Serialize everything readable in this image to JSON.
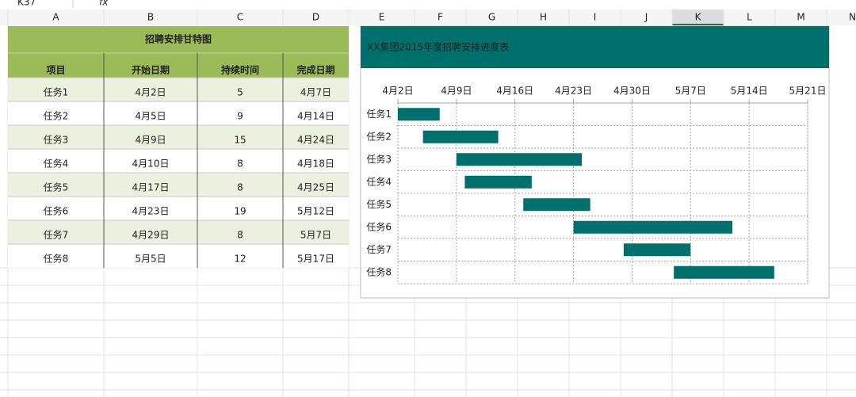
{
  "toolbar": {
    "name_box": "K37",
    "formula_label": "fx"
  },
  "sheet": {
    "columns": [
      "A",
      "B",
      "C",
      "D",
      "E",
      "F",
      "G",
      "H",
      "I",
      "J",
      "K",
      "L",
      "M",
      "N"
    ],
    "selected_column": "K"
  },
  "table": {
    "title": "招聘安排甘特图",
    "headers": [
      "项目",
      "开始日期",
      "持续时间",
      "完成日期"
    ],
    "rows": [
      [
        "任务1",
        "4月2日",
        5,
        "4月7日"
      ],
      [
        "任务2",
        "4月5日",
        9,
        "4月14日"
      ],
      [
        "任务3",
        "4月9日",
        15,
        "4月24日"
      ],
      [
        "任务4",
        "4月10日",
        8,
        "4月18日"
      ],
      [
        "任务5",
        "4月17日",
        8,
        "4月25日"
      ],
      [
        "任务6",
        "4月23日",
        19,
        "5月12日"
      ],
      [
        "任务7",
        "4月29日",
        8,
        "5月7日"
      ],
      [
        "任务8",
        "5月5日",
        12,
        "5月17日"
      ]
    ]
  },
  "chart_data": {
    "type": "gantt",
    "title": "XX集团2015年度招聘安排进度表",
    "categories": [
      "任务1",
      "任务2",
      "任务3",
      "任务4",
      "任务5",
      "任务6",
      "任务7",
      "任务8"
    ],
    "series": [
      {
        "name": "开始日期",
        "values": [
          42096,
          42099,
          42103,
          42104,
          42111,
          42117,
          42123,
          42129
        ]
      },
      {
        "name": "持续时间",
        "color": "#00706c",
        "values": [
          5,
          9,
          15,
          8,
          8,
          19,
          8,
          12
        ]
      }
    ],
    "xlim": [
      42096,
      42145
    ],
    "xticks": [
      {
        "value": 42096,
        "label": "4月2日"
      },
      {
        "value": 42103,
        "label": "4月9日"
      },
      {
        "value": 42110,
        "label": "4月16日"
      },
      {
        "value": 42117,
        "label": "4月23日"
      },
      {
        "value": 42124,
        "label": "4月30日"
      },
      {
        "value": 42131,
        "label": "5月7日"
      },
      {
        "value": 42138,
        "label": "5月14日"
      },
      {
        "value": 42145,
        "label": "5月21日"
      }
    ],
    "grid": true
  }
}
